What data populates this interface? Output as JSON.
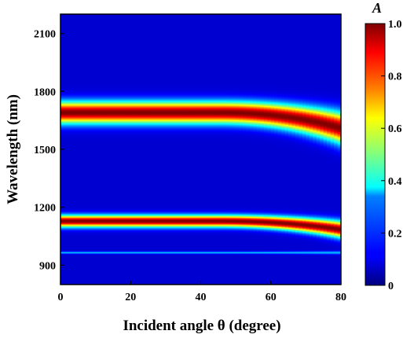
{
  "chart_data": {
    "type": "heatmap",
    "xlabel": "Incident angle θ (degree)",
    "ylabel": "Wavelength (nm)",
    "x_ticks": [
      0,
      20,
      40,
      60,
      80
    ],
    "y_ticks": [
      900,
      1200,
      1500,
      1800,
      2100
    ],
    "xlim": [
      0,
      80
    ],
    "ylim": [
      800,
      2200
    ],
    "colorbar": {
      "label": "A",
      "ticks": [
        0,
        0.2,
        0.4,
        0.6,
        0.8,
        1.0
      ],
      "tick_labels": [
        "0",
        "0.2",
        "0.4",
        "0.6",
        "0.8",
        "1.0"
      ],
      "range": [
        0,
        1
      ],
      "colormap": "jet"
    },
    "bands": [
      {
        "center_nm_at_0deg": 1690,
        "center_nm_at_80deg": 1610,
        "width_nm": 55,
        "peak_A": 1.0
      },
      {
        "center_nm_at_0deg": 1128,
        "center_nm_at_80deg": 1085,
        "width_nm": 30,
        "peak_A": 1.0
      },
      {
        "center_nm_at_0deg": 965,
        "center_nm_at_80deg": 965,
        "width_nm": 6,
        "peak_A": 0.3
      }
    ],
    "background_A": 0.08,
    "grid": false
  }
}
